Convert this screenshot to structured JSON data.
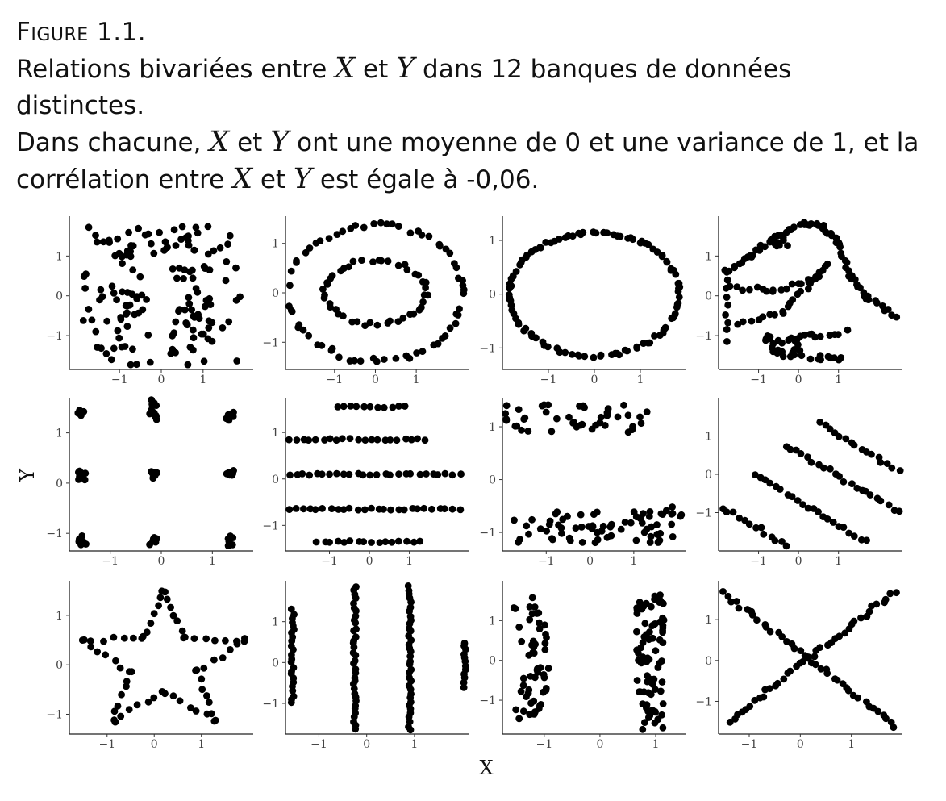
{
  "caption": {
    "figure_label": "Figure 1.1.",
    "line1_a": "Relations bivariées entre ",
    "line1_b": " et ",
    "line1_c": " dans 12 banques de données distinctes.",
    "line2_a": "Dans chacune, ",
    "line2_b": " et ",
    "line2_c": " ont une moyenne de 0 et une variance de 1, et la",
    "line3_a": "corrélation entre ",
    "line3_b": " et ",
    "line3_c": " est égale à -0,06.",
    "var_x": "X",
    "var_y": "Y"
  },
  "chart_data": {
    "type": "scatter",
    "layout": "3x4 grid of panels",
    "xlabel": "X",
    "ylabel": "Y",
    "point_color": "#000000",
    "panels": [
      {
        "shape": "cluster",
        "xlim": [
          -2.2,
          2.2
        ],
        "ylim": [
          -1.85,
          2.0
        ],
        "xticks": [
          -1,
          0,
          1
        ],
        "yticks": [
          -1,
          0,
          1
        ],
        "tick_labels": {
          "x": [
            "−1",
            "0",
            "1"
          ],
          "y": [
            "−1",
            "0",
            "1"
          ]
        }
      },
      {
        "shape": "two rings",
        "xlim": [
          -2.2,
          2.3
        ],
        "ylim": [
          -1.55,
          1.55
        ],
        "xticks": [
          -1,
          0,
          1
        ],
        "yticks": [
          -1,
          0,
          1
        ],
        "tick_labels": {
          "x": [
            "−1",
            "0",
            "1"
          ],
          "y": [
            "−1",
            "0",
            "1"
          ]
        }
      },
      {
        "shape": "ellipse",
        "xlim": [
          -2.0,
          2.0
        ],
        "ylim": [
          -1.4,
          1.45
        ],
        "xticks": [
          -1,
          0,
          1
        ],
        "yticks": [
          -1,
          0,
          1
        ],
        "tick_labels": {
          "x": [
            "−1",
            "0",
            "1"
          ],
          "y": [
            "−1",
            "0",
            "1"
          ]
        }
      },
      {
        "shape": "dinosaur",
        "xlim": [
          -2.0,
          2.6
        ],
        "ylim": [
          -1.85,
          2.0
        ],
        "xticks": [
          -1,
          0,
          1
        ],
        "yticks": [
          -1,
          0,
          1
        ],
        "tick_labels": {
          "x": [
            "−1",
            "0",
            "1"
          ],
          "y": [
            "−1",
            "0",
            "1"
          ]
        }
      },
      {
        "shape": "nine clusters",
        "xlim": [
          -1.8,
          1.8
        ],
        "ylim": [
          -1.35,
          1.7
        ],
        "xticks": [
          -1,
          0,
          1
        ],
        "yticks": [
          -1,
          0,
          1
        ],
        "tick_labels": {
          "x": [
            "−1",
            "0",
            "1"
          ],
          "y": [
            "−1",
            "0",
            "1"
          ]
        }
      },
      {
        "shape": "horizontal lines",
        "xlim": [
          -2.1,
          2.5
        ],
        "ylim": [
          -1.55,
          1.75
        ],
        "xticks": [
          -1,
          0,
          1
        ],
        "yticks": [
          -1,
          0,
          1
        ],
        "tick_labels": {
          "x": [
            "−1",
            "0",
            "1"
          ],
          "y": [
            "−1",
            "0",
            "1"
          ]
        }
      },
      {
        "shape": "two horizontal bands",
        "xlim": [
          -2.0,
          2.2
        ],
        "ylim": [
          -1.35,
          1.55
        ],
        "xticks": [
          -1,
          0,
          1
        ],
        "yticks": [
          -1,
          0,
          1
        ],
        "tick_labels": {
          "x": [
            "−1",
            "0",
            "1"
          ],
          "y": [
            "−1",
            "0",
            "1"
          ]
        }
      },
      {
        "shape": "diagonal lines",
        "xlim": [
          -2.0,
          2.6
        ],
        "ylim": [
          -2.0,
          2.0
        ],
        "xticks": [
          -1,
          0,
          1
        ],
        "yticks": [
          -1,
          0,
          1
        ],
        "tick_labels": {
          "x": [
            "−1",
            "0",
            "1"
          ],
          "y": [
            "−1",
            "0",
            "1"
          ]
        }
      },
      {
        "shape": "star",
        "xlim": [
          -1.8,
          2.1
        ],
        "ylim": [
          -1.4,
          1.7
        ],
        "xticks": [
          -1,
          0,
          1
        ],
        "yticks": [
          -1,
          0,
          1
        ],
        "tick_labels": {
          "x": [
            "−1",
            "0",
            "1"
          ],
          "y": [
            "−1",
            "0",
            "1"
          ]
        }
      },
      {
        "shape": "vertical lines",
        "xlim": [
          -1.7,
          2.15
        ],
        "ylim": [
          -1.75,
          2.0
        ],
        "xticks": [
          -1,
          0,
          1
        ],
        "yticks": [
          -1,
          0,
          1
        ],
        "tick_labels": {
          "x": [
            "−1",
            "0",
            "1"
          ],
          "y": [
            "−1",
            "0",
            "1"
          ]
        }
      },
      {
        "shape": "two vertical bands",
        "xlim": [
          -1.75,
          1.55
        ],
        "ylim": [
          -1.85,
          2.0
        ],
        "xticks": [
          -1,
          0,
          1
        ],
        "yticks": [
          -1,
          0,
          1
        ],
        "tick_labels": {
          "x": [
            "−1",
            "0",
            "1"
          ],
          "y": [
            "−1",
            "0",
            "1"
          ]
        }
      },
      {
        "shape": "X shape",
        "xlim": [
          -1.6,
          2.0
        ],
        "ylim": [
          -1.8,
          1.95
        ],
        "xticks": [
          -1,
          0,
          1
        ],
        "yticks": [
          -1,
          0,
          1
        ],
        "tick_labels": {
          "x": [
            "−1",
            "0",
            "1"
          ],
          "y": [
            "−1",
            "0",
            "1"
          ]
        }
      }
    ]
  }
}
